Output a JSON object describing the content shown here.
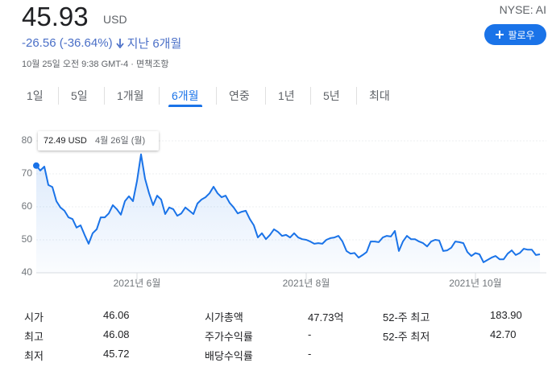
{
  "header": {
    "price": "45.93",
    "currency": "USD",
    "change": "-26.56 (-36.64%)",
    "period": "지난 6개월",
    "timestamp": "10월 25일 오전 9:38 GMT-4 · 면책조항",
    "ticker": "NYSE: AI",
    "follow": "팔로우"
  },
  "tabs": {
    "items": [
      "1일",
      "5일",
      "1개월",
      "6개월",
      "연중",
      "1년",
      "5년",
      "최대"
    ],
    "active": 3
  },
  "chart_data": {
    "type": "line",
    "color": "#1a73e8",
    "tooltip": {
      "price": "72.49 USD",
      "date": "4월 26일 (월)"
    },
    "values": [
      72.49,
      71,
      72.2,
      66.6,
      66,
      61.7,
      59.8,
      58.8,
      56.8,
      56.3,
      53.7,
      54.4,
      51.5,
      48.8,
      52,
      53.2,
      56.8,
      56.8,
      58,
      60.5,
      59.3,
      57.6,
      61.7,
      63.2,
      61.7,
      67.8,
      75.9,
      68.5,
      64.1,
      60.5,
      63.4,
      62.2,
      57.8,
      59.8,
      59.3,
      57.3,
      58,
      59.8,
      58.8,
      57.8,
      61,
      62.2,
      62.9,
      64.1,
      66.1,
      64.1,
      62.9,
      63.4,
      61.2,
      59.8,
      58,
      58.5,
      58.8,
      56.3,
      54.4,
      50.7,
      52,
      50.2,
      51.5,
      53.2,
      52.4,
      51.2,
      51.5,
      50.7,
      52,
      50.7,
      50.2,
      50,
      49.5,
      48.8,
      49,
      48.8,
      50,
      50.5,
      50.7,
      51.2,
      49.5,
      46.6,
      45.8,
      46,
      44.6,
      45.4,
      46.3,
      49.5,
      49.5,
      49.3,
      50.7,
      51.2,
      51,
      52.7,
      46.6,
      49.5,
      51.2,
      50.2,
      50.2,
      49.5,
      49,
      48,
      49.5,
      50,
      49.8,
      46.6,
      46.8,
      47.6,
      49.5,
      49.3,
      49,
      46.3,
      45.1,
      46,
      45.6,
      43.2,
      43.9,
      44.6,
      45.1,
      44.1,
      44.1,
      45.8,
      46.8,
      45.4,
      46,
      47.3,
      47,
      47,
      45.4,
      45.6
    ],
    "categories": [
      null,
      null,
      null,
      null,
      null,
      null,
      null,
      null,
      null,
      null,
      null,
      null,
      null,
      null,
      null,
      null,
      null,
      null,
      null,
      null,
      null,
      null,
      null,
      null,
      null,
      "2021년 6월",
      null,
      null,
      null,
      null,
      null,
      null,
      null,
      null,
      null,
      null,
      null,
      null,
      null,
      null,
      null,
      null,
      null,
      null,
      null,
      null,
      null,
      null,
      null,
      null,
      null,
      null,
      null,
      null,
      null,
      null,
      null,
      null,
      null,
      null,
      null,
      null,
      null,
      null,
      null,
      null,
      null,
      "2021년 8월",
      null,
      null,
      null,
      null,
      null,
      null,
      null,
      null,
      null,
      null,
      null,
      null,
      null,
      null,
      null,
      null,
      null,
      null,
      null,
      null,
      null,
      null,
      null,
      null,
      null,
      null,
      null,
      null,
      null,
      null,
      null,
      null,
      null,
      null,
      null,
      null,
      null,
      null,
      null,
      null,
      null,
      "2021년 10월",
      null,
      null,
      null,
      null,
      null,
      null,
      null,
      null,
      null,
      null,
      null,
      null,
      null,
      null,
      null,
      null
    ],
    "ylim": [
      40,
      80
    ],
    "yticks": [
      40,
      50,
      60,
      70,
      80
    ],
    "grid": true
  },
  "stats": {
    "rows": [
      [
        "시가",
        "46.06",
        "시가총액",
        "47.73억",
        "52-주 최고",
        "183.90"
      ],
      [
        "최고",
        "46.08",
        "주가수익률",
        "-",
        "52-주 최저",
        "42.70"
      ],
      [
        "최저",
        "45.72",
        "배당수익률",
        "-"
      ]
    ]
  }
}
